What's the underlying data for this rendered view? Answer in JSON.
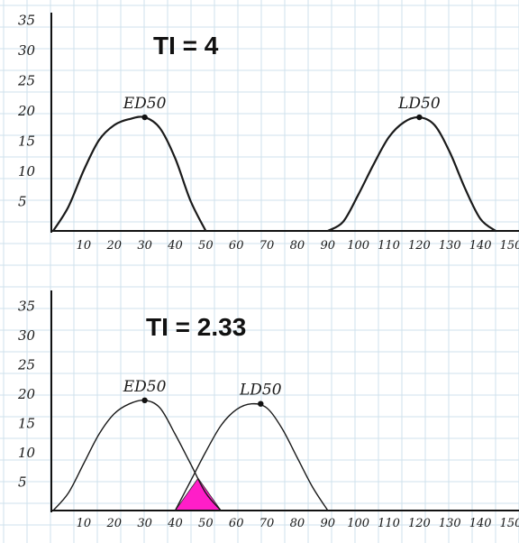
{
  "chart_data": [
    {
      "type": "line",
      "title": "TI = 4",
      "xlabel": "",
      "ylabel": "",
      "xlim": [
        0,
        150
      ],
      "ylim": [
        0,
        35
      ],
      "grid": true,
      "x_ticks": [
        "10",
        "20",
        "30",
        "40",
        "50",
        "60",
        "70",
        "80",
        "90",
        "100",
        "110",
        "120",
        "130",
        "140",
        "150"
      ],
      "y_ticks": [
        "5",
        "10",
        "15",
        "20",
        "25",
        "30",
        "35"
      ],
      "series": [
        {
          "name": "ED50",
          "x": [
            0,
            5,
            10,
            15,
            20,
            25,
            30,
            35,
            40,
            45,
            50
          ],
          "y": [
            0,
            4,
            10,
            15,
            17.5,
            18.5,
            18.8,
            17,
            12,
            5,
            0
          ]
        },
        {
          "name": "LD50",
          "x": [
            90,
            95,
            100,
            105,
            110,
            115,
            120,
            125,
            130,
            135,
            140,
            145
          ],
          "y": [
            0,
            1.5,
            6,
            11,
            15.5,
            18,
            18.8,
            17.5,
            13,
            7,
            2,
            0
          ]
        }
      ],
      "annotations": [
        {
          "text": "ED50",
          "x": 30,
          "y": 18.8
        },
        {
          "text": "LD50",
          "x": 120,
          "y": 18.8
        }
      ]
    },
    {
      "type": "line",
      "title": "TI = 2.33",
      "xlabel": "",
      "ylabel": "",
      "xlim": [
        0,
        150
      ],
      "ylim": [
        0,
        35
      ],
      "grid": true,
      "x_ticks": [
        "10",
        "20",
        "30",
        "40",
        "50",
        "60",
        "70",
        "80",
        "90",
        "100",
        "110",
        "120",
        "130",
        "140",
        "150"
      ],
      "y_ticks": [
        "5",
        "10",
        "15",
        "20",
        "25",
        "30",
        "35"
      ],
      "series": [
        {
          "name": "ED50",
          "x": [
            0,
            5,
            10,
            15,
            20,
            25,
            30,
            35,
            40,
            45,
            50,
            55
          ],
          "y": [
            0,
            3,
            8,
            13,
            16.5,
            18.2,
            18.8,
            17.5,
            13,
            8,
            3,
            0
          ]
        },
        {
          "name": "LD50",
          "x": [
            40,
            45,
            50,
            55,
            60,
            65,
            70,
            75,
            80,
            85,
            90
          ],
          "y": [
            0,
            5,
            10,
            14.5,
            17.2,
            18.2,
            17.5,
            14,
            9,
            4,
            0
          ]
        }
      ],
      "overlap_region": {
        "x_range": [
          40,
          55
        ],
        "peak_y": 5.5,
        "color": "#ff1ec8"
      },
      "annotations": [
        {
          "text": "ED50",
          "x": 30,
          "y": 18.8
        },
        {
          "text": "LD50",
          "x": 68,
          "y": 18.2
        }
      ]
    }
  ]
}
